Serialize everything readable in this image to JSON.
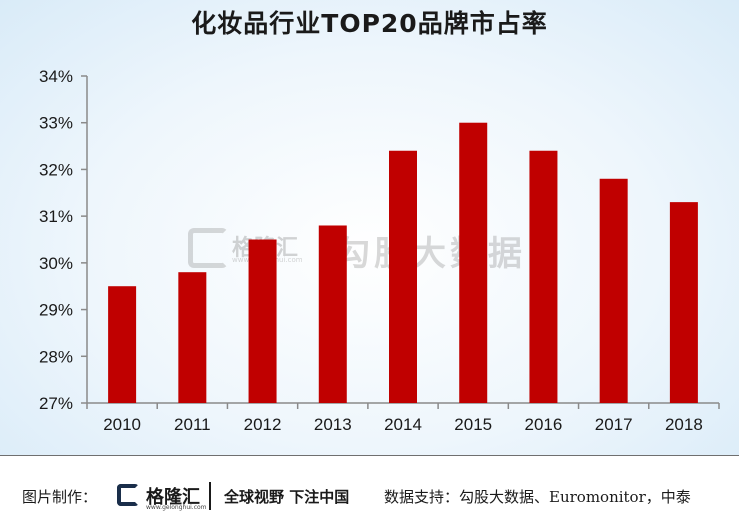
{
  "title": "化妆品行业TOP20品牌市占率",
  "watermark": {
    "brand": "格隆汇",
    "url": "www.gelonghui.com",
    "text": "勾股大数据"
  },
  "footer": {
    "made_by_label": "图片制作：",
    "logo_text": "格隆汇",
    "logo_url": "www.gelonghui.com",
    "slogan": "全球视野 下注中国",
    "source": "数据支持：勾股大数据、Euromonitor，中泰"
  },
  "chart_data": {
    "type": "bar",
    "title": "化妆品行业TOP20品牌市占率",
    "categories": [
      "2010",
      "2011",
      "2012",
      "2013",
      "2014",
      "2015",
      "2016",
      "2017",
      "2018"
    ],
    "values": [
      29.5,
      29.8,
      30.5,
      30.8,
      32.4,
      33.0,
      32.4,
      31.8,
      31.3
    ],
    "yticks": [
      "27%",
      "28%",
      "29%",
      "30%",
      "31%",
      "32%",
      "33%",
      "34%"
    ],
    "ylim": [
      27,
      34
    ],
    "xlabel": "",
    "ylabel": "",
    "bar_color": "#c00000",
    "grid": false,
    "legend": "none"
  }
}
